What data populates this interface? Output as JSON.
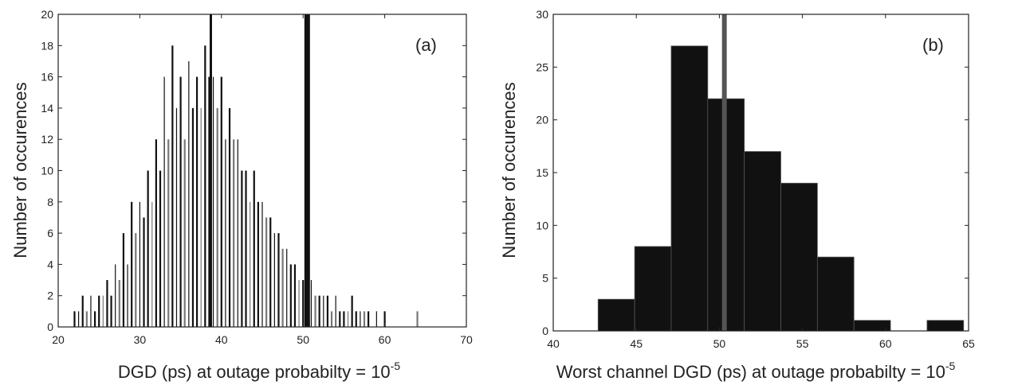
{
  "chart_data": [
    {
      "type": "bar",
      "panel_label": "(a)",
      "xlabel": "DGD (ps) at outage probabilty = 10",
      "xlabel_sup": "-5",
      "ylabel": "Number of occurences",
      "xlim": [
        20,
        70
      ],
      "ylim": [
        0,
        20
      ],
      "xticks": [
        20,
        30,
        40,
        50,
        60,
        70
      ],
      "yticks": [
        0,
        2,
        4,
        6,
        8,
        10,
        12,
        14,
        16,
        18,
        20
      ],
      "vlines": [
        38.7,
        50.5
      ],
      "x": [
        22.0,
        22.5,
        23.0,
        23.5,
        24.0,
        24.5,
        25.0,
        25.5,
        26.0,
        26.5,
        27.0,
        27.5,
        28.0,
        28.5,
        29.0,
        29.5,
        30.0,
        30.5,
        31.0,
        31.5,
        32.0,
        32.5,
        33.0,
        33.5,
        34.0,
        34.5,
        35.0,
        35.5,
        36.0,
        36.5,
        37.0,
        37.5,
        38.0,
        38.5,
        39.0,
        39.5,
        40.0,
        40.5,
        41.0,
        41.5,
        42.0,
        42.5,
        43.0,
        43.5,
        44.0,
        44.5,
        45.0,
        45.5,
        46.0,
        46.5,
        47.0,
        47.5,
        48.0,
        48.5,
        49.0,
        49.5,
        50.0,
        50.5,
        51.0,
        51.5,
        52.0,
        52.5,
        53.0,
        53.5,
        54.0,
        54.5,
        55.0,
        55.5,
        56.0,
        56.5,
        57.0,
        57.5,
        58.0,
        59.0,
        60.0,
        64.0
      ],
      "values": [
        1,
        1,
        2,
        1,
        2,
        1,
        2,
        2,
        3,
        2,
        4,
        3,
        6,
        4,
        8,
        6,
        8,
        7,
        10,
        8,
        12,
        10,
        16,
        12,
        18,
        14,
        16,
        12,
        17,
        14,
        16,
        14,
        18,
        16,
        16,
        14,
        16,
        12,
        14,
        12,
        12,
        10,
        10,
        8,
        10,
        8,
        8,
        7,
        7,
        6,
        6,
        5,
        5,
        4,
        4,
        3,
        3,
        4,
        3,
        2,
        2,
        2,
        2,
        1,
        2,
        1,
        1,
        1,
        2,
        1,
        1,
        1,
        1,
        1,
        1,
        1
      ]
    },
    {
      "type": "bar",
      "panel_label": "(b)",
      "xlabel": "Worst channel DGD (ps) at outage probabilty = 10",
      "xlabel_sup": "-5",
      "ylabel": "Number of occurences",
      "xlim": [
        40,
        65
      ],
      "ylim": [
        0,
        30
      ],
      "xticks": [
        40,
        45,
        50,
        55,
        60,
        65
      ],
      "yticks": [
        0,
        5,
        10,
        15,
        20,
        25,
        30
      ],
      "vlines": [
        50.3
      ],
      "bin_edges": [
        42.7,
        44.9,
        47.1,
        49.3,
        51.5,
        53.7,
        55.9,
        58.1,
        60.3,
        62.5,
        64.7
      ],
      "values": [
        3,
        8,
        27,
        22,
        17,
        14,
        7,
        1,
        0,
        1
      ]
    }
  ]
}
